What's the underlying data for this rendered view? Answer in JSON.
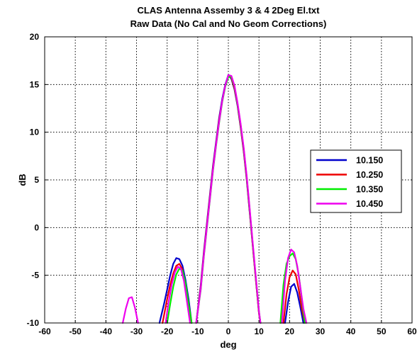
{
  "chart_data": {
    "type": "line",
    "title": "CLAS Antenna Assemby 3 & 4 2Deg El.txt",
    "subtitle": "Raw Data (No Cal and No Geom Corrections)",
    "xlabel": "deg",
    "ylabel": "dB",
    "xlim": [
      -60,
      60
    ],
    "ylim": [
      -10,
      20
    ],
    "xticks": [
      -60,
      -50,
      -40,
      -30,
      -20,
      -10,
      0,
      10,
      20,
      30,
      40,
      50,
      60
    ],
    "yticks": [
      -10,
      -5,
      0,
      5,
      10,
      15,
      20
    ],
    "grid": true,
    "legend_position": "right",
    "series": [
      {
        "name": "10.150",
        "color": "#0000cc",
        "segments": [
          [
            [
              -22.5,
              -10
            ],
            [
              -21,
              -8
            ],
            [
              -20,
              -6.5
            ],
            [
              -19,
              -5
            ],
            [
              -18,
              -3.8
            ],
            [
              -17,
              -3.2
            ],
            [
              -16,
              -3.3
            ],
            [
              -15,
              -4
            ],
            [
              -14,
              -5.5
            ],
            [
              -13,
              -7.5
            ],
            [
              -12,
              -10
            ]
          ],
          [
            [
              -10.5,
              -10
            ],
            [
              -9,
              -6
            ],
            [
              -8,
              -2.5
            ],
            [
              -7,
              0.5
            ],
            [
              -6,
              3.5
            ],
            [
              -5,
              6.5
            ],
            [
              -4,
              9
            ],
            [
              -3,
              11.5
            ],
            [
              -2,
              13.5
            ],
            [
              -1,
              15
            ],
            [
              0,
              16
            ],
            [
              1,
              15.6
            ],
            [
              2,
              14.5
            ],
            [
              3,
              12.8
            ],
            [
              4,
              10.5
            ],
            [
              5,
              8
            ],
            [
              6,
              5
            ],
            [
              7,
              1.5
            ],
            [
              8,
              -2
            ],
            [
              9,
              -5.5
            ],
            [
              10,
              -9
            ],
            [
              10.5,
              -10
            ]
          ],
          [
            [
              18.5,
              -10
            ],
            [
              19.5,
              -7.8
            ],
            [
              20.5,
              -6.2
            ],
            [
              21.5,
              -5.9
            ],
            [
              22.5,
              -6.8
            ],
            [
              23.5,
              -8.3
            ],
            [
              24.5,
              -10
            ]
          ]
        ]
      },
      {
        "name": "10.250",
        "color": "#ee0000",
        "segments": [
          [
            [
              -21.5,
              -10
            ],
            [
              -20,
              -7.5
            ],
            [
              -19,
              -6
            ],
            [
              -18,
              -4.8
            ],
            [
              -17,
              -4
            ],
            [
              -16,
              -3.8
            ],
            [
              -15,
              -4.4
            ],
            [
              -14,
              -6
            ],
            [
              -13,
              -8
            ],
            [
              -12,
              -10
            ]
          ],
          [
            [
              -10.5,
              -10
            ],
            [
              -9,
              -6.2
            ],
            [
              -8,
              -2.7
            ],
            [
              -7,
              0.3
            ],
            [
              -6,
              3.3
            ],
            [
              -5,
              6.3
            ],
            [
              -4,
              8.8
            ],
            [
              -3,
              11.3
            ],
            [
              -2,
              13.3
            ],
            [
              -1,
              14.9
            ],
            [
              0,
              15.9
            ],
            [
              1,
              15.7
            ],
            [
              2,
              14.6
            ],
            [
              3,
              12.9
            ],
            [
              4,
              10.6
            ],
            [
              5,
              8.1
            ],
            [
              6,
              5.1
            ],
            [
              7,
              1.6
            ],
            [
              8,
              -2
            ],
            [
              9,
              -5.5
            ],
            [
              10,
              -9
            ],
            [
              10.5,
              -10
            ]
          ],
          [
            [
              18,
              -10
            ],
            [
              19,
              -7
            ],
            [
              20,
              -5.2
            ],
            [
              21,
              -4.5
            ],
            [
              22,
              -4.9
            ],
            [
              23,
              -6.5
            ],
            [
              24,
              -8.5
            ],
            [
              25,
              -10
            ]
          ]
        ]
      },
      {
        "name": "10.350",
        "color": "#00ee00",
        "segments": [
          [
            [
              -20,
              -10
            ],
            [
              -19,
              -8
            ],
            [
              -18,
              -6.2
            ],
            [
              -17,
              -4.9
            ],
            [
              -16,
              -4.3
            ],
            [
              -15,
              -4.5
            ],
            [
              -14,
              -5.8
            ],
            [
              -13,
              -8
            ],
            [
              -12,
              -10
            ]
          ],
          [
            [
              -10.5,
              -10
            ],
            [
              -9,
              -6.5
            ],
            [
              -8,
              -3
            ],
            [
              -7,
              0
            ],
            [
              -6,
              3
            ],
            [
              -5,
              6
            ],
            [
              -4,
              8.6
            ],
            [
              -3,
              11
            ],
            [
              -2,
              13.2
            ],
            [
              -1,
              14.8
            ],
            [
              0,
              15.8
            ],
            [
              1,
              15.8
            ],
            [
              2,
              14.8
            ],
            [
              3,
              13
            ],
            [
              4,
              10.8
            ],
            [
              5,
              8.3
            ],
            [
              6,
              5.3
            ],
            [
              7,
              1.8
            ],
            [
              8,
              -1.8
            ],
            [
              9,
              -5.3
            ],
            [
              10,
              -8.8
            ],
            [
              10.5,
              -10
            ]
          ],
          [
            [
              17,
              -10
            ],
            [
              18,
              -6
            ],
            [
              19,
              -3.8
            ],
            [
              20,
              -3
            ],
            [
              21,
              -2.7
            ],
            [
              22,
              -3.3
            ],
            [
              23,
              -5
            ],
            [
              24,
              -7.5
            ],
            [
              25,
              -10
            ]
          ]
        ]
      },
      {
        "name": "10.450",
        "color": "#ee00ee",
        "segments": [
          [
            [
              -34.5,
              -10
            ],
            [
              -33.5,
              -8.5
            ],
            [
              -32.5,
              -7.4
            ],
            [
              -31.5,
              -7.3
            ],
            [
              -30.5,
              -8.4
            ],
            [
              -29.5,
              -10
            ]
          ],
          [
            [
              -20.5,
              -10
            ],
            [
              -19.5,
              -7.8
            ],
            [
              -18.5,
              -6
            ],
            [
              -17.5,
              -4.7
            ],
            [
              -16.5,
              -4.1
            ],
            [
              -15.5,
              -4.3
            ],
            [
              -14.5,
              -5.6
            ],
            [
              -13.5,
              -7.8
            ],
            [
              -12.5,
              -10
            ]
          ],
          [
            [
              -10.5,
              -10
            ],
            [
              -9,
              -6.4
            ],
            [
              -8,
              -2.9
            ],
            [
              -7,
              0.1
            ],
            [
              -6,
              3.1
            ],
            [
              -5,
              6.1
            ],
            [
              -4,
              8.7
            ],
            [
              -3,
              11.1
            ],
            [
              -2,
              13.3
            ],
            [
              -1,
              14.9
            ],
            [
              0,
              16
            ],
            [
              1,
              15.9
            ],
            [
              2,
              14.9
            ],
            [
              3,
              13.1
            ],
            [
              4,
              10.9
            ],
            [
              5,
              8.4
            ],
            [
              6,
              5.4
            ],
            [
              7,
              1.9
            ],
            [
              8,
              -1.7
            ],
            [
              9,
              -5.2
            ],
            [
              10,
              -8.8
            ],
            [
              10.5,
              -10
            ]
          ],
          [
            [
              17.5,
              -10
            ],
            [
              18.5,
              -5.6
            ],
            [
              19.5,
              -3.2
            ],
            [
              20.5,
              -2.3
            ],
            [
              21.5,
              -2.6
            ],
            [
              22.5,
              -4
            ],
            [
              23.5,
              -6.2
            ],
            [
              24.5,
              -8.5
            ],
            [
              25.5,
              -10
            ]
          ]
        ]
      }
    ]
  }
}
